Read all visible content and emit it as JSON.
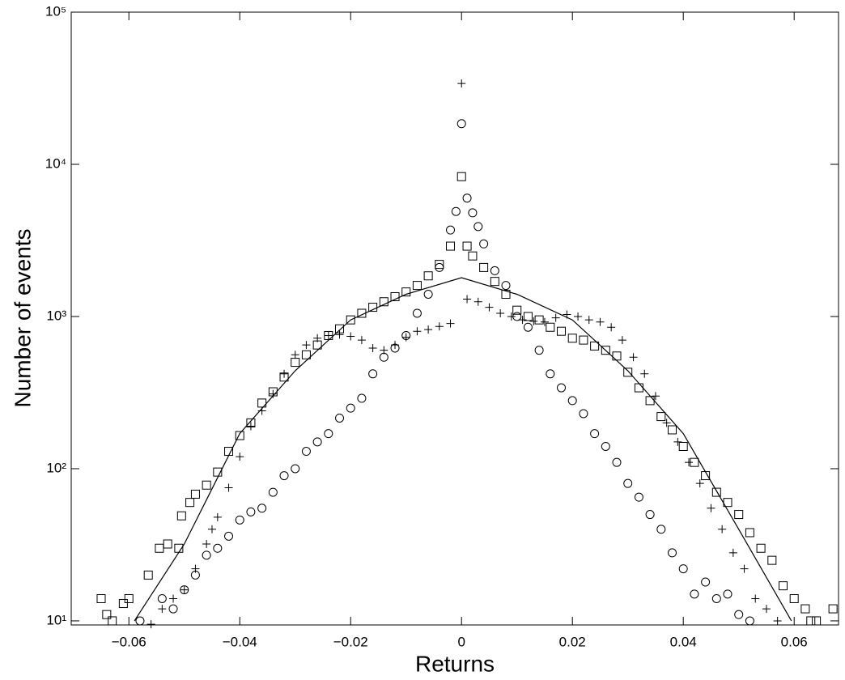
{
  "chart_data": {
    "type": "scatter",
    "xlabel": "Returns",
    "ylabel": "Number of events",
    "xlim": [
      -0.0704,
      0.068
    ],
    "xticks": [
      -0.06,
      -0.04,
      -0.02,
      0,
      0.02,
      0.04,
      0.06
    ],
    "ylim": [
      9.4,
      100000
    ],
    "log_y": true,
    "yticks": [
      {
        "value": 10,
        "label": "10¹"
      },
      {
        "value": 100,
        "label": "10²"
      },
      {
        "value": 1000,
        "label": "10³"
      },
      {
        "value": 10000,
        "label": "10⁴"
      },
      {
        "value": 100000,
        "label": "10⁵"
      }
    ],
    "color": "#000000",
    "series": [
      {
        "marker": "line",
        "x": [
          -0.059,
          -0.05,
          -0.04,
          -0.03,
          -0.02,
          -0.01,
          0,
          0.01,
          0.02,
          0.03,
          0.04,
          0.05,
          0.0595
        ],
        "values": [
          10,
          32,
          170,
          440,
          950,
          1400,
          1800,
          1400,
          950,
          440,
          170,
          40,
          10
        ]
      },
      {
        "marker": "square",
        "x": [
          -0.065,
          -0.064,
          -0.063,
          -0.061,
          -0.06,
          -0.0565,
          -0.0545,
          -0.053,
          -0.051,
          -0.0505,
          -0.049,
          -0.048,
          -0.046,
          -0.044,
          -0.042,
          -0.04,
          -0.038,
          -0.036,
          -0.034,
          -0.032,
          -0.03,
          -0.028,
          -0.026,
          -0.024,
          -0.022,
          -0.02,
          -0.018,
          -0.016,
          -0.014,
          -0.012,
          -0.01,
          -0.008,
          -0.006,
          -0.004,
          -0.002,
          0,
          0.001,
          0.002,
          0.004,
          0.006,
          0.008,
          0.01,
          0.012,
          0.014,
          0.016,
          0.018,
          0.02,
          0.022,
          0.024,
          0.026,
          0.028,
          0.03,
          0.032,
          0.034,
          0.036,
          0.038,
          0.04,
          0.042,
          0.044,
          0.046,
          0.048,
          0.05,
          0.052,
          0.054,
          0.056,
          0.058,
          0.06,
          0.062,
          0.063,
          0.064,
          0.067
        ],
        "values": [
          14,
          11,
          10,
          13,
          14,
          20,
          30,
          32,
          30,
          49,
          60,
          68,
          78,
          95,
          130,
          165,
          200,
          270,
          320,
          400,
          500,
          560,
          650,
          750,
          830,
          950,
          1050,
          1150,
          1250,
          1350,
          1450,
          1600,
          1850,
          2200,
          2900,
          8300,
          2900,
          2500,
          2100,
          1700,
          1400,
          1100,
          1000,
          950,
          850,
          800,
          720,
          700,
          640,
          600,
          550,
          430,
          340,
          280,
          220,
          180,
          140,
          110,
          90,
          70,
          60,
          50,
          38,
          30,
          25,
          17,
          14,
          12,
          10,
          10,
          12
        ]
      },
      {
        "marker": "circle",
        "x": [
          -0.058,
          -0.054,
          -0.052,
          -0.05,
          -0.048,
          -0.046,
          -0.044,
          -0.042,
          -0.04,
          -0.038,
          -0.036,
          -0.034,
          -0.032,
          -0.03,
          -0.028,
          -0.026,
          -0.024,
          -0.022,
          -0.02,
          -0.018,
          -0.016,
          -0.014,
          -0.012,
          -0.01,
          -0.008,
          -0.006,
          -0.004,
          -0.002,
          -0.001,
          0,
          0.001,
          0.002,
          0.003,
          0.004,
          0.006,
          0.008,
          0.01,
          0.012,
          0.014,
          0.016,
          0.018,
          0.02,
          0.022,
          0.024,
          0.026,
          0.028,
          0.03,
          0.032,
          0.034,
          0.036,
          0.038,
          0.04,
          0.042,
          0.044,
          0.046,
          0.048,
          0.05,
          0.052
        ],
        "values": [
          10,
          14,
          12,
          16,
          20,
          27,
          30,
          36,
          46,
          52,
          55,
          70,
          90,
          100,
          130,
          150,
          170,
          215,
          250,
          290,
          420,
          540,
          620,
          750,
          1050,
          1400,
          2100,
          3700,
          4900,
          18500,
          6000,
          4800,
          3900,
          3000,
          2000,
          1600,
          1000,
          850,
          600,
          420,
          340,
          280,
          230,
          170,
          140,
          110,
          80,
          65,
          50,
          40,
          28,
          22,
          15,
          18,
          14,
          15,
          11,
          10
        ]
      },
      {
        "marker": "plus",
        "x": [
          -0.056,
          -0.054,
          -0.052,
          -0.05,
          -0.048,
          -0.046,
          -0.045,
          -0.044,
          -0.042,
          -0.04,
          -0.038,
          -0.036,
          -0.034,
          -0.032,
          -0.03,
          -0.028,
          -0.026,
          -0.024,
          -0.022,
          -0.02,
          -0.018,
          -0.016,
          -0.014,
          -0.012,
          -0.01,
          -0.008,
          -0.006,
          -0.004,
          -0.002,
          0,
          0.001,
          0.003,
          0.005,
          0.007,
          0.009,
          0.011,
          0.013,
          0.015,
          0.017,
          0.019,
          0.021,
          0.023,
          0.025,
          0.027,
          0.029,
          0.031,
          0.033,
          0.035,
          0.037,
          0.039,
          0.041,
          0.043,
          0.045,
          0.047,
          0.049,
          0.051,
          0.053,
          0.055,
          0.057
        ],
        "values": [
          9.5,
          12,
          14,
          16,
          22,
          32,
          40,
          48,
          75,
          120,
          190,
          240,
          310,
          420,
          560,
          650,
          720,
          750,
          760,
          740,
          700,
          620,
          600,
          650,
          730,
          800,
          820,
          860,
          900,
          34000,
          1300,
          1250,
          1150,
          1050,
          1000,
          950,
          930,
          920,
          980,
          1030,
          1000,
          950,
          920,
          850,
          700,
          540,
          420,
          300,
          200,
          150,
          110,
          80,
          55,
          40,
          28,
          22,
          14,
          12,
          10
        ]
      }
    ]
  }
}
